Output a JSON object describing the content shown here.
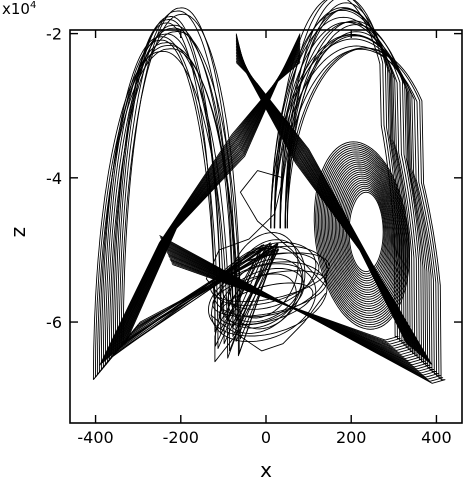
{
  "chart_data": {
    "type": "line",
    "title": "",
    "xlabel": "x",
    "ylabel": "z",
    "y_multiplier": "x10",
    "y_multiplier_exp": "4",
    "xlim": [
      -460,
      460
    ],
    "ylim": [
      -7.4,
      -1.95
    ],
    "x_ticks": [
      -400,
      -200,
      0,
      200,
      400
    ],
    "x_tick_labels": [
      "-400",
      "-200",
      "0",
      "200",
      "400"
    ],
    "y_ticks": [
      -2,
      -4,
      -6
    ],
    "y_tick_labels": [
      "-2",
      "-4",
      "-6"
    ],
    "grid": false,
    "legend": "none",
    "line_color": "#000000",
    "series": [
      {
        "description_values": "attractor trajectory (approximate traced lobes)",
        "lobes": [
          {
            "center": [
              -210,
              -4.6
            ],
            "x_extent": [
              -405,
              -60
            ],
            "z_top": -2.2,
            "z_bottom": -6.8,
            "turns": 16
          },
          {
            "center": [
              225,
              -5.0
            ],
            "x_extent": [
              40,
              420
            ],
            "z_top": -2.2,
            "z_bottom": -6.8,
            "turns": 22
          },
          {
            "center": [
              240,
              -4.7
            ],
            "x_extent": [
              170,
              310
            ],
            "z_top": -3.9,
            "z_bottom": -5.6,
            "turns": 24
          },
          {
            "center": [
              0,
              -5.4
            ],
            "x_extent": [
              -140,
              140
            ],
            "z_top": -4.8,
            "z_bottom": -6.5,
            "turns": 12
          }
        ]
      }
    ]
  }
}
